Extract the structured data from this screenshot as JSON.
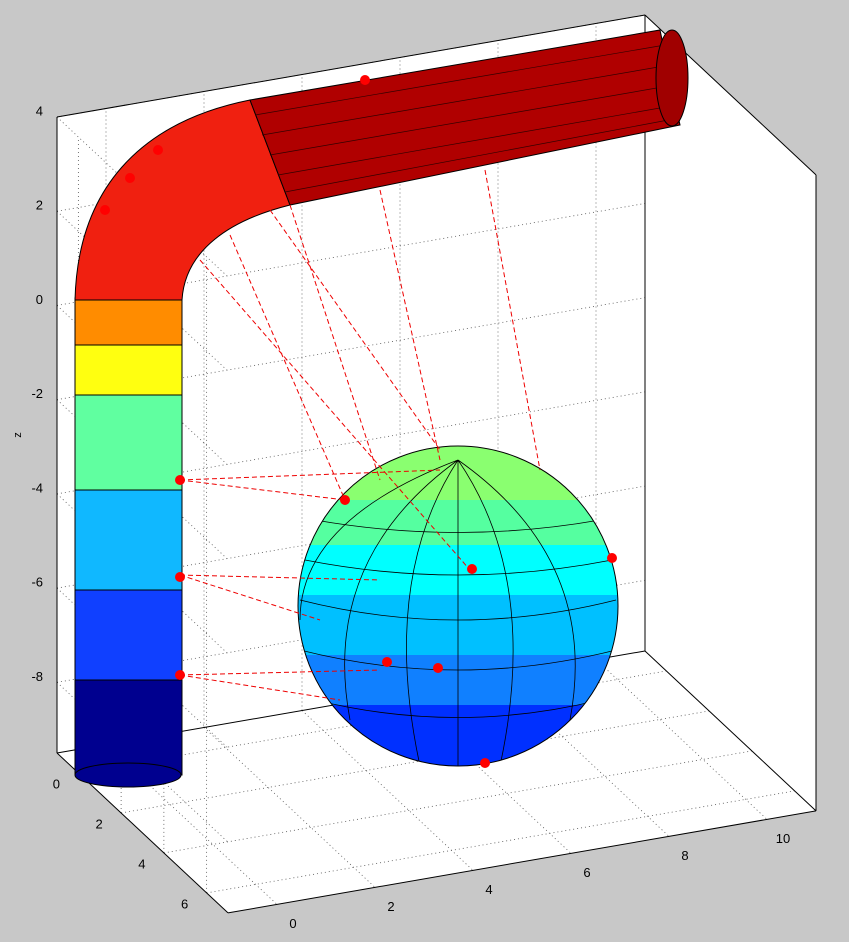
{
  "chart_data": {
    "type": "surface3d",
    "zlabel": "z",
    "xlim": [
      -1,
      11
    ],
    "ylim": [
      -1,
      7
    ],
    "zlim": [
      -9.5,
      4
    ],
    "xticks": [
      0,
      2,
      4,
      6,
      8,
      10
    ],
    "yticks": [
      0,
      2,
      4,
      6
    ],
    "zticks": [
      -8,
      -6,
      -4,
      -2,
      0,
      2,
      4
    ],
    "grid": true
  }
}
